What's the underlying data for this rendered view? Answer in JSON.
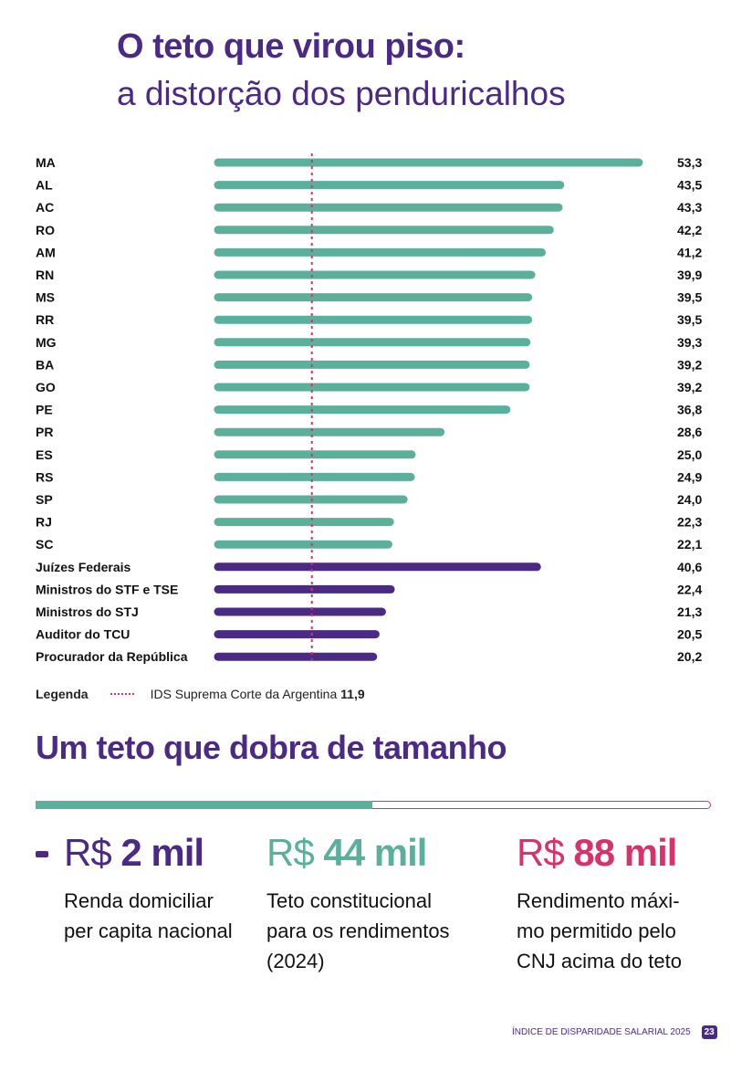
{
  "title_line1": "O teto que virou piso:",
  "title_line2": "a distorção dos penduricalhos",
  "colors": {
    "states": "#5bb09c",
    "federal": "#4b2a85",
    "reference": "#d6336c"
  },
  "chart_data": {
    "type": "bar",
    "orientation": "horizontal",
    "xlim": [
      0,
      53.3
    ],
    "grid": false,
    "categories": [
      "MA",
      "AL",
      "AC",
      "RO",
      "AM",
      "RN",
      "MS",
      "RR",
      "MG",
      "BA",
      "GO",
      "PE",
      "PR",
      "ES",
      "RS",
      "SP",
      "RJ",
      "SC",
      "Juízes Federais",
      "Ministros do STF e TSE",
      "Ministros do STJ",
      "Auditor do TCU",
      "Procurador da República"
    ],
    "values": [
      53.3,
      43.5,
      43.3,
      42.2,
      41.2,
      39.9,
      39.5,
      39.5,
      39.3,
      39.2,
      39.2,
      36.8,
      28.6,
      25.0,
      24.9,
      24.0,
      22.3,
      22.1,
      40.6,
      22.4,
      21.3,
      20.5,
      20.2
    ],
    "value_labels": [
      "53,3",
      "43,5",
      "43,3",
      "42,2",
      "41,2",
      "39,9",
      "39,5",
      "39,5",
      "39,3",
      "39,2",
      "39,2",
      "36,8",
      "28,6",
      "25,0",
      "24,9",
      "24,0",
      "22,3",
      "22,1",
      "40,6",
      "22,4",
      "21,3",
      "20,5",
      "20,2"
    ],
    "groups": [
      "state",
      "state",
      "state",
      "state",
      "state",
      "state",
      "state",
      "state",
      "state",
      "state",
      "state",
      "state",
      "state",
      "state",
      "state",
      "state",
      "state",
      "state",
      "federal",
      "federal",
      "federal",
      "federal",
      "federal"
    ],
    "reference_line": {
      "value": 11.9,
      "label": "IDS Suprema Corte da Argentina",
      "value_label": "11,9",
      "style": "dotted"
    },
    "legend": {
      "title": "Legenda",
      "placement": "bottom-left"
    }
  },
  "section2": {
    "title": "Um teto que dobra de tamanho",
    "progress_fraction": 0.5,
    "items": [
      {
        "prefix": "R$",
        "amount": "2 mil",
        "desc": "Renda domiciliar per capita nacional",
        "color": "#4b2a85"
      },
      {
        "prefix": "R$",
        "amount": "44 mil",
        "desc": "Teto constitucional para os rendimentos (2024)",
        "color": "#5bb09c"
      },
      {
        "prefix": "R$",
        "amount": "88 mil",
        "desc": "Rendimento máxi-mo permitido pelo CNJ acima do teto",
        "color": "#d6336c"
      }
    ]
  },
  "footer": {
    "text": "ÍNDICE DE DISPARIDADE SALARIAL 2025",
    "page": "23"
  }
}
